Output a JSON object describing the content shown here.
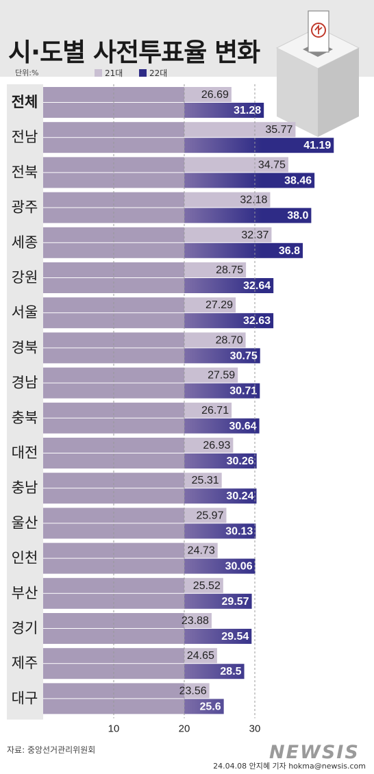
{
  "title": "시·도별 사전투표율 변화",
  "unit": "단위:%",
  "legend": [
    {
      "label": "21대",
      "color": "#c9bfd2"
    },
    {
      "label": "22대",
      "color": "#2e2b86"
    }
  ],
  "colors": {
    "bar21": "#c9bfd2",
    "bar22_start": "#7d6ea8",
    "bar22_end": "#2e2b86",
    "row_bg_dark": "#a89bb8",
    "row_bg_light": "#d9d0e2",
    "label_panel": "#e8e8e8",
    "gridline": "#999999"
  },
  "chart_data": {
    "type": "bar",
    "orientation": "horizontal",
    "title": "시·도별 사전투표율 변화",
    "unit": "단위:%",
    "categories": [
      "전체",
      "전남",
      "전북",
      "광주",
      "세종",
      "강원",
      "서울",
      "경북",
      "경남",
      "충북",
      "대전",
      "충남",
      "울산",
      "인천",
      "부산",
      "경기",
      "제주",
      "대구"
    ],
    "series": [
      {
        "name": "21대",
        "values": [
          26.69,
          35.77,
          34.75,
          32.18,
          32.37,
          28.75,
          27.29,
          28.7,
          27.59,
          26.71,
          26.93,
          25.31,
          25.97,
          24.73,
          25.52,
          23.88,
          24.65,
          23.56
        ],
        "labels": [
          "26.69",
          "35.77",
          "34.75",
          "32.18",
          "32.37",
          "28.75",
          "27.29",
          "28.70",
          "27.59",
          "26.71",
          "26.93",
          "25.31",
          "25.97",
          "24.73",
          "25.52",
          "23.88",
          "24.65",
          "23.56"
        ]
      },
      {
        "name": "22대",
        "values": [
          31.28,
          41.19,
          38.46,
          38.0,
          36.8,
          32.64,
          32.63,
          30.75,
          30.71,
          30.64,
          30.26,
          30.24,
          30.13,
          30.06,
          29.57,
          29.54,
          28.5,
          25.6
        ],
        "labels": [
          "31.28",
          "41.19",
          "38.46",
          "38.0",
          "36.8",
          "32.64",
          "32.63",
          "30.75",
          "30.71",
          "30.64",
          "30.26",
          "30.24",
          "30.13",
          "30.06",
          "29.57",
          "29.54",
          "28.5",
          "25.6"
        ]
      }
    ],
    "xticks": [
      "10",
      "20",
      "30"
    ],
    "xlim": [
      0,
      42
    ],
    "grid": "dashed vertical at 10, 20, 30",
    "legend_position": "top"
  },
  "source": "자료: 중앙선거관리위원회",
  "logo": "NEWSIS",
  "byline": "24.04.08 안지혜 기자 hokma@newsis.com"
}
